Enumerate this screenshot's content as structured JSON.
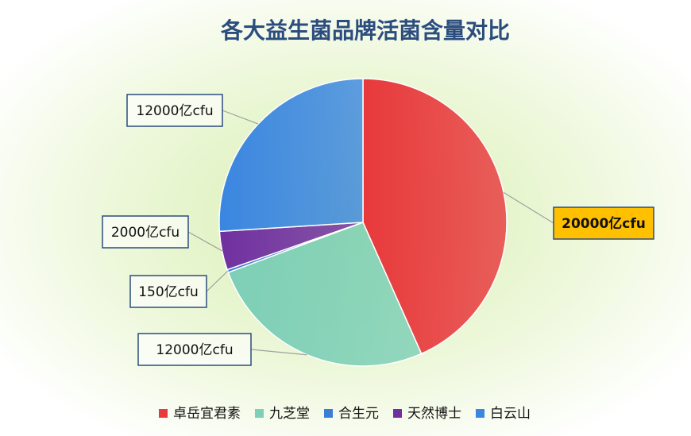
{
  "chart_data": {
    "type": "pie",
    "title": "各大益生菌品牌活菌含量对比",
    "categories": [
      "卓岳宜君素",
      "九芝堂",
      "合生元",
      "天然博士",
      "白云山"
    ],
    "values": [
      20000,
      12000,
      150,
      2000,
      12000
    ],
    "value_labels": [
      "20000亿cfu",
      "12000亿cfu",
      "150亿cfu",
      "2000亿cfu",
      "12000亿cfu"
    ],
    "colors": [
      "#e8393c",
      "#7dcfb6",
      "#3a7fd5",
      "#7030a0",
      "#3a86e0"
    ],
    "legend": "bottom"
  }
}
